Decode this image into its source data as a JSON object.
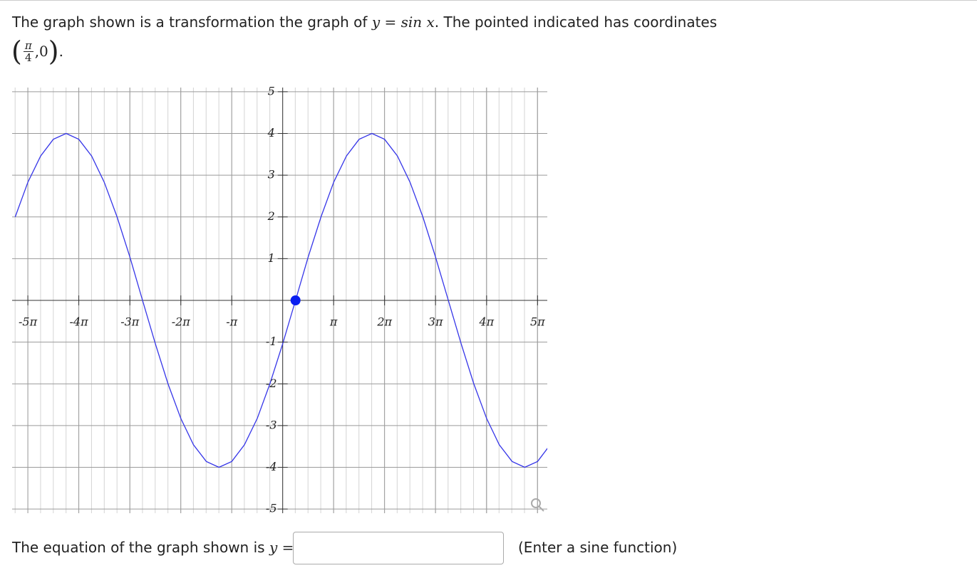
{
  "question": {
    "text_before": "The graph shown is a transformation the graph of",
    "math": "y = sin x",
    "text_after": ". The pointed indicated has coordinates",
    "point": {
      "numerator": "π",
      "denominator": "4",
      "y": "0"
    }
  },
  "chart_data": {
    "type": "line",
    "x": [
      -16.49,
      -15.71,
      -14.92,
      -14.14,
      -13.35,
      -12.57,
      -11.78,
      -11.0,
      -10.21,
      -9.42,
      -8.64,
      -7.85,
      -7.07,
      -6.28,
      -5.5,
      -4.71,
      -3.93,
      -3.14,
      -2.36,
      -1.57,
      -0.79,
      0,
      0.79,
      1.57,
      2.36,
      3.14,
      3.93,
      4.71,
      5.5,
      6.28,
      7.07,
      7.85,
      8.64,
      9.42,
      10.21,
      11.0,
      11.78,
      12.57,
      13.35,
      14.14,
      14.92,
      15.71,
      16.49
    ],
    "series": [
      {
        "color": "#3535e8",
        "values": [
          2,
          2.83,
          3.46,
          3.86,
          4,
          3.86,
          3.46,
          2.83,
          2,
          1.04,
          0,
          -1.04,
          -2,
          -2.83,
          -3.46,
          -3.86,
          -4,
          -3.86,
          -3.46,
          -2.83,
          -2,
          -1.04,
          0,
          1.04,
          2,
          2.83,
          3.46,
          3.86,
          4,
          3.86,
          3.46,
          2.83,
          2,
          1.04,
          0,
          -1.04,
          -2,
          -2.83,
          -3.46,
          -3.86,
          -4,
          -3.86,
          -3.46
        ]
      }
    ],
    "marker": {
      "x": 0.79,
      "y": 0,
      "color": "#0a1ef0"
    },
    "xlim": [
      -16.68,
      16.31
    ],
    "ylim": [
      -5.1,
      5.1
    ],
    "xticks": [
      {
        "value": -15.71,
        "label": "-5π"
      },
      {
        "value": -12.57,
        "label": "-4π"
      },
      {
        "value": -9.42,
        "label": "-3π"
      },
      {
        "value": -6.28,
        "label": "-2π"
      },
      {
        "value": -3.14,
        "label": "-π"
      },
      {
        "value": 3.14,
        "label": "π"
      },
      {
        "value": 6.28,
        "label": "2π"
      },
      {
        "value": 9.42,
        "label": "3π"
      },
      {
        "value": 12.57,
        "label": "4π"
      },
      {
        "value": 15.71,
        "label": "5π"
      }
    ],
    "yticks": [
      -5,
      -4,
      -3,
      -2,
      -1,
      1,
      2,
      3,
      4,
      5
    ],
    "grid": true
  },
  "answer": {
    "prompt": "The equation of the graph shown is",
    "math": "y =",
    "hint": "(Enter a sine function)"
  }
}
